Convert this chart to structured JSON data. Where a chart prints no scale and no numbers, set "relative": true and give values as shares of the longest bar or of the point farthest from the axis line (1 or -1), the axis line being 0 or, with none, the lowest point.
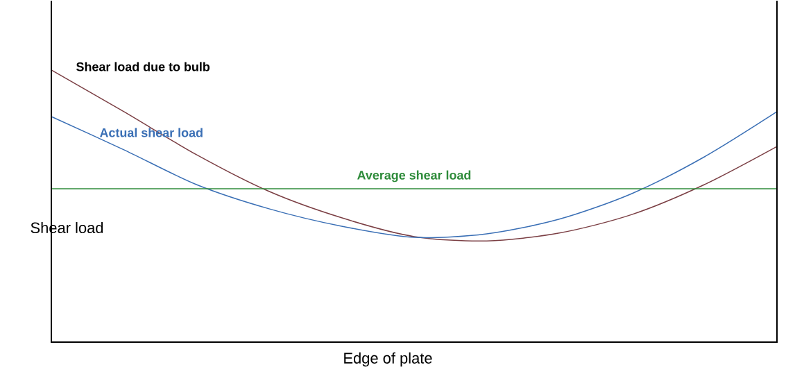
{
  "chart_data": {
    "type": "line",
    "relative": true,
    "xlabel": "Edge of plate",
    "ylabel": "Shear load",
    "categories": [
      null,
      null,
      null,
      null,
      null,
      null,
      null,
      null,
      null,
      null,
      null
    ],
    "series": [
      {
        "name": "Shear load due to bulb",
        "color": "#7b3f44",
        "values": [
          1.0,
          0.847,
          0.689,
          0.554,
          0.457,
          0.388,
          0.372,
          0.401,
          0.469,
          0.579,
          0.719
        ]
      },
      {
        "name": "Actual shear load",
        "color": "#3a6fb5",
        "values": [
          0.829,
          0.707,
          0.579,
          0.49,
          0.426,
          0.385,
          0.398,
          0.452,
          0.546,
          0.681,
          0.847
        ]
      }
    ],
    "ref_lines": [
      {
        "axis": "y",
        "value": 0.564,
        "label": "Average shear load",
        "color": "#2e8b3a"
      }
    ]
  }
}
